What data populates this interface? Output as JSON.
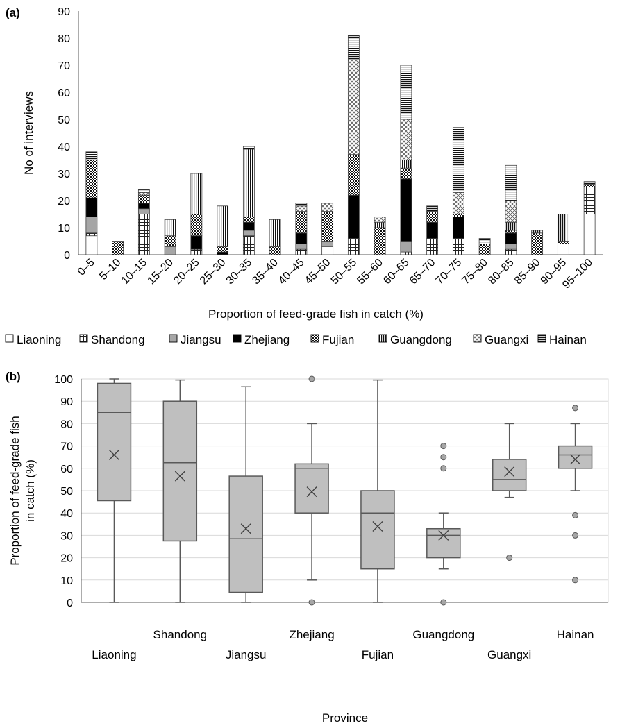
{
  "panel_a_label": "(a)",
  "panel_b_label": "(b)",
  "chart_data": [
    {
      "type": "bar",
      "stacked": true,
      "panel": "(a)",
      "xlabel": "Proportion of feed-grade fish in catch (%)",
      "ylabel": "No of interviews",
      "ylim": [
        0,
        90
      ],
      "yticks": [
        0,
        10,
        20,
        30,
        40,
        50,
        60,
        70,
        80,
        90
      ],
      "grid": false,
      "legend_position": "bottom",
      "categories": [
        "0–5",
        "5–10",
        "10–15",
        "15–20",
        "20–25",
        "25–30",
        "30–35",
        "35–40",
        "40–45",
        "45–50",
        "50–55",
        "55–60",
        "60–65",
        "65–70",
        "70–75",
        "75–80",
        "80–85",
        "85–90",
        "90–95",
        "95–100"
      ],
      "series": [
        {
          "name": "Liaoning",
          "pattern": "empty",
          "values": [
            7,
            0,
            0,
            0,
            0,
            0,
            0,
            0,
            0,
            3,
            0,
            0,
            0,
            0,
            0,
            0,
            0,
            0,
            4,
            15
          ]
        },
        {
          "name": "Shandong",
          "pattern": "small-grid",
          "values": [
            1,
            0,
            15,
            0,
            2,
            0,
            7,
            0,
            2,
            0,
            6,
            0,
            1,
            6,
            6,
            0,
            2,
            0,
            0,
            10
          ]
        },
        {
          "name": "Jiangsu",
          "pattern": "solid-gray",
          "values": [
            6,
            0,
            2,
            3,
            0,
            0,
            2,
            0,
            2,
            2,
            0,
            0,
            4,
            0,
            0,
            0,
            2,
            0,
            0,
            0
          ]
        },
        {
          "name": "Zhejiang",
          "pattern": "solid-black",
          "values": [
            7,
            0,
            2,
            0,
            5,
            1,
            3,
            0,
            4,
            0,
            16,
            0,
            23,
            6,
            8,
            0,
            4,
            0,
            0,
            0
          ]
        },
        {
          "name": "Fujian",
          "pattern": "checker",
          "values": [
            14,
            5,
            3,
            4,
            8,
            2,
            2,
            3,
            8,
            11,
            15,
            10,
            4,
            4,
            1,
            4,
            1,
            8,
            1,
            1
          ]
        },
        {
          "name": "Guangdong",
          "pattern": "vertical",
          "values": [
            0,
            0,
            0,
            6,
            15,
            15,
            25,
            10,
            0,
            0,
            0,
            2,
            3,
            0,
            0,
            0,
            3,
            1,
            10,
            0
          ]
        },
        {
          "name": "Guangxi",
          "pattern": "diamond",
          "values": [
            0,
            0,
            1,
            0,
            0,
            0,
            0,
            0,
            2,
            3,
            35,
            2,
            15,
            0,
            8,
            0,
            8,
            0,
            0,
            0
          ]
        },
        {
          "name": "Hainan",
          "pattern": "horizontal",
          "values": [
            3,
            0,
            1,
            0,
            0,
            0,
            1,
            0,
            1,
            0,
            9,
            0,
            20,
            2,
            24,
            2,
            13,
            0,
            0,
            1
          ]
        }
      ]
    },
    {
      "type": "box",
      "panel": "(b)",
      "xlabel": "Province",
      "ylabel": [
        "Proportion of feed-grade fish",
        "in catch (%)"
      ],
      "ylim": [
        0,
        100
      ],
      "yticks": [
        0,
        10,
        20,
        30,
        40,
        50,
        60,
        70,
        80,
        90,
        100
      ],
      "grid": true,
      "marker_mean": "×",
      "categories": [
        "Liaoning",
        "Shandong",
        "Jiangsu",
        "Zhejiang",
        "Fujian",
        "Guangdong",
        "Guangxi",
        "Hainan"
      ],
      "boxes": [
        {
          "name": "Liaoning",
          "whisker_low": 0,
          "q1": 45.5,
          "median": 85,
          "q3": 98,
          "whisker_high": 100,
          "mean": 66,
          "outliers": []
        },
        {
          "name": "Shandong",
          "whisker_low": 0,
          "q1": 27.5,
          "median": 62.5,
          "q3": 90,
          "whisker_high": 99.5,
          "mean": 56.5,
          "outliers": []
        },
        {
          "name": "Jiangsu",
          "whisker_low": 0,
          "q1": 4.5,
          "median": 28.5,
          "q3": 56.5,
          "whisker_high": 96.5,
          "mean": 33,
          "outliers": []
        },
        {
          "name": "Zhejiang",
          "whisker_low": 10,
          "q1": 40,
          "median": 60,
          "q3": 62,
          "whisker_high": 80,
          "mean": 49.5,
          "outliers": [
            0,
            100
          ]
        },
        {
          "name": "Fujian",
          "whisker_low": 0,
          "q1": 15,
          "median": 40,
          "q3": 50,
          "whisker_high": 99.5,
          "mean": 34,
          "outliers": []
        },
        {
          "name": "Guangdong",
          "whisker_low": 15,
          "q1": 20,
          "median": 30,
          "q3": 33,
          "whisker_high": 40,
          "mean": 30,
          "outliers": [
            0,
            60,
            65,
            70
          ]
        },
        {
          "name": "Guangxi",
          "whisker_low": 47,
          "q1": 50,
          "median": 55,
          "q3": 64,
          "whisker_high": 80,
          "mean": 58.5,
          "outliers": [
            20
          ]
        },
        {
          "name": "Hainan",
          "whisker_low": 50,
          "q1": 60,
          "median": 66,
          "q3": 70,
          "whisker_high": 80,
          "mean": 64,
          "outliers": [
            10,
            30,
            39,
            87
          ]
        }
      ]
    }
  ],
  "colors": {
    "axis": "#595959",
    "grid": "#d9d9d9",
    "bar_edge": "#404040",
    "box_fill": "#bfbfbf",
    "box_edge": "#595959",
    "jiangsu_fill": "#a6a6a6",
    "outlier_fill": "#a6a6a6"
  }
}
